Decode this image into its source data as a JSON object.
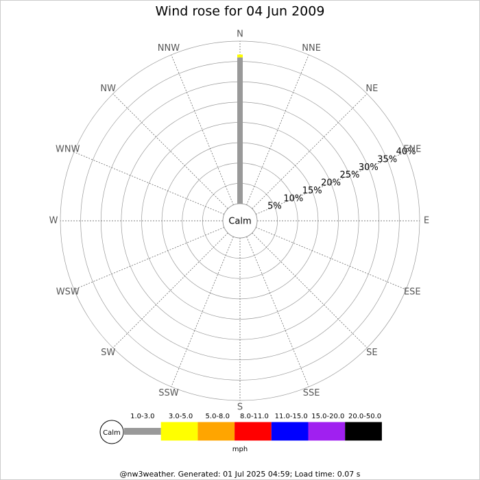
{
  "chart_data": {
    "type": "windrose",
    "title": "Wind rose for 04 Jun 2009",
    "directions": [
      "N",
      "NNE",
      "NE",
      "ENE",
      "E",
      "ESE",
      "SE",
      "SSE",
      "S",
      "SSW",
      "SW",
      "WSW",
      "W",
      "WNW",
      "NW",
      "NNW"
    ],
    "center_label": "Calm",
    "rlim": [
      0,
      40
    ],
    "rticks": [
      {
        "value": 5,
        "label": "5%"
      },
      {
        "value": 10,
        "label": "10%"
      },
      {
        "value": 15,
        "label": "15%"
      },
      {
        "value": 20,
        "label": "20%"
      },
      {
        "value": 25,
        "label": "25%"
      },
      {
        "value": 30,
        "label": "30%"
      },
      {
        "value": 35,
        "label": "35%"
      },
      {
        "value": 40,
        "label": "40%"
      }
    ],
    "series": [
      {
        "name": "1.0-3.0",
        "color": "#999999",
        "values": [
          36,
          0,
          0,
          0,
          0,
          0,
          0,
          0,
          0,
          0,
          0,
          0,
          0,
          0,
          0,
          0
        ]
      },
      {
        "name": "3.0-5.0",
        "color": "#ffff00",
        "values": [
          0.7,
          0,
          0,
          0,
          0,
          0,
          0,
          0,
          0,
          0,
          0,
          0,
          0,
          0,
          0,
          0
        ]
      },
      {
        "name": "5.0-8.0",
        "color": "#ffa500",
        "values": [
          0,
          0,
          0,
          0,
          0,
          0,
          0,
          0,
          0,
          0,
          0,
          0,
          0,
          0,
          0,
          0
        ]
      },
      {
        "name": "8.0-11.0",
        "color": "#ff0000",
        "values": [
          0,
          0,
          0,
          0,
          0,
          0,
          0,
          0,
          0,
          0,
          0,
          0,
          0,
          0,
          0,
          0
        ]
      },
      {
        "name": "11.0-15.0",
        "color": "#0000ff",
        "values": [
          0,
          0,
          0,
          0,
          0,
          0,
          0,
          0,
          0,
          0,
          0,
          0,
          0,
          0,
          0,
          0
        ]
      },
      {
        "name": "15.0-20.0",
        "color": "#a020f0",
        "values": [
          0,
          0,
          0,
          0,
          0,
          0,
          0,
          0,
          0,
          0,
          0,
          0,
          0,
          0,
          0,
          0
        ]
      },
      {
        "name": "20.0-50.0",
        "color": "#000000",
        "values": [
          0,
          0,
          0,
          0,
          0,
          0,
          0,
          0,
          0,
          0,
          0,
          0,
          0,
          0,
          0,
          0
        ]
      }
    ],
    "legend_unit": "mph",
    "footer": "@nw3weather. Generated: 01 Jul 2025 04:59; Load time: 0.07 s"
  }
}
